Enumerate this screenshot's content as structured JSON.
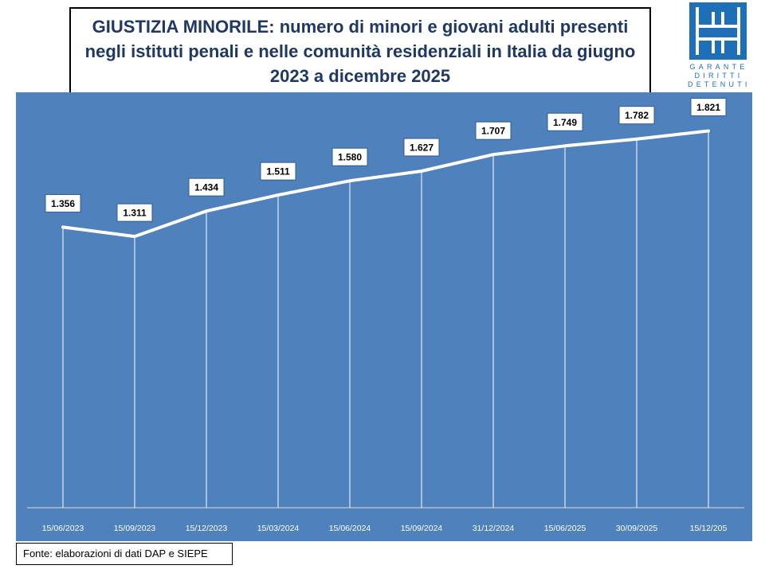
{
  "header": {
    "title": "GIUSTIZIA MINORILE: numero di minori e giovani adulti presenti negli istituti penali e nelle comunità residenziali in Italia da giugno 2023 a dicembre 2025"
  },
  "logo": {
    "line1": "GARANTE",
    "line2": "DIRITTI",
    "line3": "DETENUTI",
    "color": "#1d6fb8"
  },
  "source": "Fonte: elaborazioni di dati DAP e SIEPE",
  "colors": {
    "chart_bg": "#4f81bd",
    "line": "#ffffff",
    "title": "#1f3864"
  },
  "chart_data": {
    "type": "line",
    "title": "GIUSTIZIA MINORILE: numero di minori e giovani adulti presenti negli istituti penali e nelle comunità residenziali in Italia da giugno 2023 a dicembre 2025",
    "categories": [
      "15/06/2023",
      "15/09/2023",
      "15/12/2023",
      "15/03/2024",
      "15/06/2024",
      "15/09/2024",
      "31/12/2024",
      "15/06/2025",
      "30/09/2025",
      "15/12/205"
    ],
    "values": [
      1356,
      1311,
      1434,
      1511,
      1580,
      1627,
      1707,
      1749,
      1782,
      1821
    ],
    "labels": [
      "1.356",
      "1.311",
      "1.434",
      "1.511",
      "1.580",
      "1.627",
      "1.707",
      "1.749",
      "1.782",
      "1.821"
    ],
    "xlabel": "",
    "ylabel": "",
    "ylim": [
      0,
      2000
    ],
    "grid": false,
    "drop_lines": true,
    "data_labels": true
  }
}
